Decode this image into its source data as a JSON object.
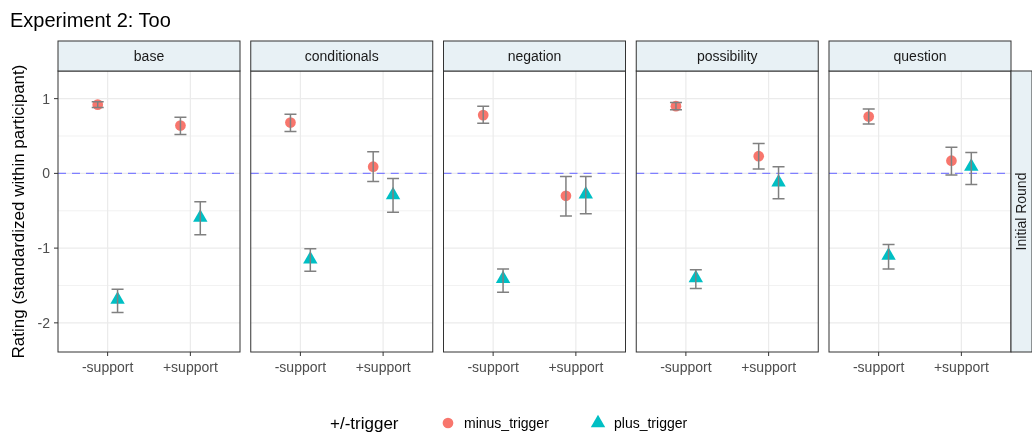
{
  "chart_data": [
    {
      "type": "scatter",
      "title": "base",
      "ylabel": "Rating (standardized within participant)",
      "annotations": [
        "Experiment 2: Too"
      ],
      "legend": "bottom",
      "legend_title": "+/-trigger",
      "categories": [
        "-support",
        "+support"
      ],
      "ylim": [
        -2.39,
        1.37
      ],
      "yticks": [
        -2,
        -1,
        0,
        1
      ],
      "grid": true,
      "ref_lines": [
        {
          "axis": "y",
          "value": 0,
          "color": "#7f7fff",
          "line_style": "dashed"
        }
      ],
      "series": [
        {
          "name": "minus_trigger",
          "color": "#f8766d",
          "marker": "circle",
          "values": [
            0.92,
            0.64
          ],
          "errors": [
            [
              0.88,
              0.96
            ],
            [
              0.52,
              0.75
            ]
          ]
        },
        {
          "name": "plus_trigger",
          "color": "#00bfc4",
          "marker": "triangle",
          "values": [
            -1.69,
            -0.59
          ],
          "errors": [
            [
              -1.86,
              -1.55
            ],
            [
              -0.82,
              -0.38
            ]
          ]
        }
      ]
    },
    {
      "type": "scatter",
      "title": "conditionals",
      "tick_labels": "x",
      "categories": [
        "-support",
        "+support"
      ],
      "ylim": [
        -2.39,
        1.37
      ],
      "grid": true,
      "ref_lines": [
        {
          "axis": "y",
          "value": 0,
          "color": "#7f7fff",
          "line_style": "dashed"
        }
      ],
      "series": [
        {
          "name": "minus_trigger",
          "color": "#f8766d",
          "marker": "circle",
          "values": [
            0.68,
            0.09
          ],
          "errors": [
            [
              0.56,
              0.79
            ],
            [
              -0.11,
              0.29
            ]
          ]
        },
        {
          "name": "plus_trigger",
          "color": "#00bfc4",
          "marker": "triangle",
          "values": [
            -1.15,
            -0.29
          ],
          "errors": [
            [
              -1.31,
              -1.01
            ],
            [
              -0.52,
              -0.07
            ]
          ]
        }
      ]
    },
    {
      "type": "scatter",
      "title": "negation",
      "tick_labels": "x",
      "categories": [
        "-support",
        "+support"
      ],
      "ylim": [
        -2.39,
        1.37
      ],
      "grid": true,
      "ref_lines": [
        {
          "axis": "y",
          "value": 0,
          "color": "#7f7fff",
          "line_style": "dashed"
        }
      ],
      "series": [
        {
          "name": "minus_trigger",
          "color": "#f8766d",
          "marker": "circle",
          "values": [
            0.78,
            -0.3
          ],
          "errors": [
            [
              0.67,
              0.9
            ],
            [
              -0.57,
              -0.04
            ]
          ]
        },
        {
          "name": "plus_trigger",
          "color": "#00bfc4",
          "marker": "triangle",
          "values": [
            -1.41,
            -0.28
          ],
          "errors": [
            [
              -1.59,
              -1.28
            ],
            [
              -0.54,
              -0.04
            ]
          ]
        }
      ]
    },
    {
      "type": "scatter",
      "title": "possibility",
      "tick_labels": "x",
      "categories": [
        "-support",
        "+support"
      ],
      "ylim": [
        -2.39,
        1.37
      ],
      "grid": true,
      "ref_lines": [
        {
          "axis": "y",
          "value": 0,
          "color": "#7f7fff",
          "line_style": "dashed"
        }
      ],
      "series": [
        {
          "name": "minus_trigger",
          "color": "#f8766d",
          "marker": "circle",
          "values": [
            0.9,
            0.23
          ],
          "errors": [
            [
              0.85,
              0.95
            ],
            [
              0.06,
              0.4
            ]
          ]
        },
        {
          "name": "plus_trigger",
          "color": "#00bfc4",
          "marker": "triangle",
          "values": [
            -1.4,
            -0.12
          ],
          "errors": [
            [
              -1.54,
              -1.29
            ],
            [
              -0.34,
              0.09
            ]
          ]
        }
      ]
    },
    {
      "type": "scatter",
      "title": "question",
      "y2label": "Initial Round",
      "tick_labels": "x",
      "categories": [
        "-support",
        "+support"
      ],
      "ylim": [
        -2.39,
        1.37
      ],
      "grid": true,
      "ref_lines": [
        {
          "axis": "y",
          "value": 0,
          "color": "#7f7fff",
          "line_style": "dashed"
        }
      ],
      "series": [
        {
          "name": "minus_trigger",
          "color": "#f8766d",
          "marker": "circle",
          "values": [
            0.76,
            0.17
          ],
          "errors": [
            [
              0.66,
              0.86
            ],
            [
              -0.02,
              0.35
            ]
          ]
        },
        {
          "name": "plus_trigger",
          "color": "#00bfc4",
          "marker": "triangle",
          "values": [
            -1.1,
            0.09
          ],
          "errors": [
            [
              -1.28,
              -0.95
            ],
            [
              -0.15,
              0.28
            ]
          ]
        }
      ]
    }
  ]
}
